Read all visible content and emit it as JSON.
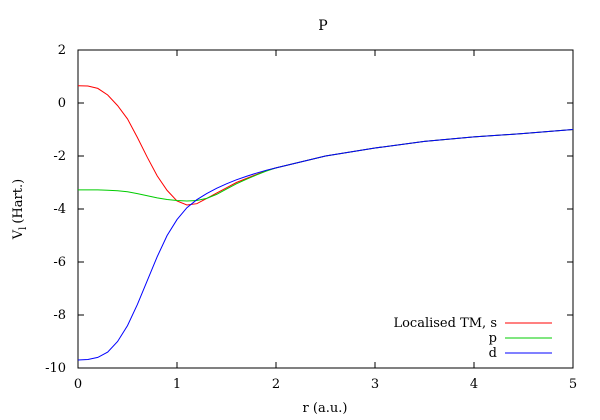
{
  "chart_data": {
    "type": "line",
    "title": "P",
    "xlabel": "r (a.u.)",
    "ylabel": "V",
    "ylabel_sub": "l",
    "ylabel_unit": "(Hart.)",
    "xlim": [
      0,
      5
    ],
    "ylim": [
      -10,
      2
    ],
    "xticks": [
      "0",
      "1",
      "2",
      "3",
      "4",
      "5"
    ],
    "yticks": [
      "2",
      "0",
      "-2",
      "-4",
      "-6",
      "-8",
      "-10"
    ],
    "grid": false,
    "legend_position": "bottom-right",
    "series": [
      {
        "name": "Localised TM, s",
        "color": "#ff0000",
        "x": [
          0,
          0.1,
          0.2,
          0.3,
          0.4,
          0.5,
          0.6,
          0.7,
          0.8,
          0.9,
          1.0,
          1.1,
          1.2,
          1.3,
          1.4,
          1.5,
          1.6,
          1.7,
          1.8,
          1.9,
          2.0,
          2.5,
          3.0,
          3.5,
          4.0,
          4.5,
          5.0
        ],
        "y": [
          0.65,
          0.64,
          0.55,
          0.3,
          -0.1,
          -0.6,
          -1.3,
          -2.05,
          -2.75,
          -3.3,
          -3.7,
          -3.85,
          -3.8,
          -3.6,
          -3.4,
          -3.2,
          -3.0,
          -2.85,
          -2.7,
          -2.55,
          -2.45,
          -2.0,
          -1.7,
          -1.45,
          -1.28,
          -1.15,
          -1.0
        ]
      },
      {
        "name": "p",
        "color": "#00cc00",
        "x": [
          0,
          0.1,
          0.2,
          0.3,
          0.4,
          0.5,
          0.6,
          0.7,
          0.8,
          0.9,
          1.0,
          1.1,
          1.2,
          1.3,
          1.4,
          1.5,
          1.6,
          1.7,
          1.8,
          1.9,
          2.0,
          2.5,
          3.0,
          3.5,
          4.0,
          4.5,
          5.0
        ],
        "y": [
          -3.28,
          -3.28,
          -3.28,
          -3.29,
          -3.31,
          -3.35,
          -3.42,
          -3.5,
          -3.58,
          -3.64,
          -3.68,
          -3.7,
          -3.68,
          -3.6,
          -3.45,
          -3.25,
          -3.05,
          -2.88,
          -2.72,
          -2.57,
          -2.45,
          -2.0,
          -1.7,
          -1.45,
          -1.28,
          -1.15,
          -1.0
        ]
      },
      {
        "name": "d",
        "color": "#0000ff",
        "x": [
          0,
          0.1,
          0.2,
          0.3,
          0.4,
          0.5,
          0.6,
          0.7,
          0.8,
          0.9,
          1.0,
          1.1,
          1.2,
          1.3,
          1.4,
          1.5,
          1.6,
          1.7,
          1.8,
          1.9,
          2.0,
          2.5,
          3.0,
          3.5,
          4.0,
          4.5,
          5.0
        ],
        "y": [
          -9.7,
          -9.68,
          -9.6,
          -9.4,
          -9.0,
          -8.4,
          -7.6,
          -6.7,
          -5.8,
          -5.0,
          -4.4,
          -3.95,
          -3.65,
          -3.42,
          -3.22,
          -3.05,
          -2.9,
          -2.77,
          -2.65,
          -2.54,
          -2.45,
          -2.0,
          -1.7,
          -1.45,
          -1.28,
          -1.15,
          -1.0
        ]
      }
    ]
  }
}
